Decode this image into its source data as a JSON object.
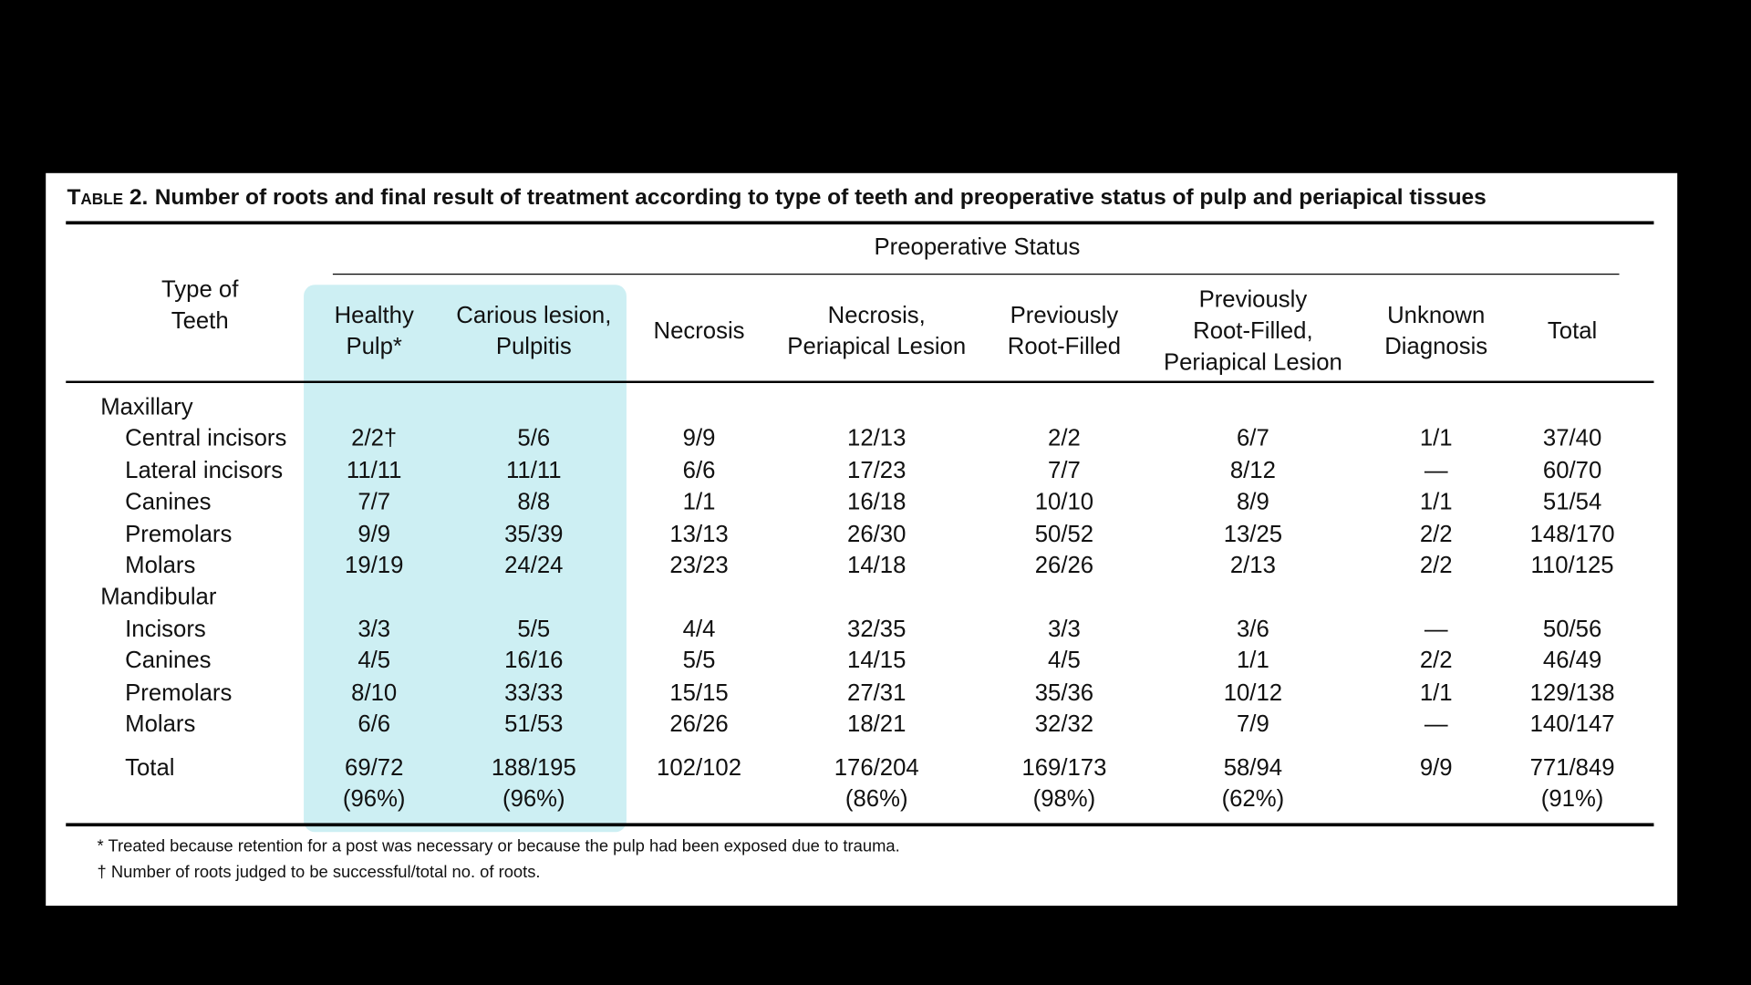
{
  "table": {
    "label": "Table 2.",
    "title": "Number of roots and final result of treatment according to type of teeth and preoperative status of pulp and periapical tissues",
    "row_header": "Type of\nTeeth",
    "group_header": "Preoperative Status",
    "columns": [
      "Healthy\nPulp*",
      "Carious lesion,\nPulpitis",
      "Necrosis",
      "Necrosis,\nPeriapical Lesion",
      "Previously\nRoot-Filled",
      "Previously\nRoot-Filled,\nPeriapical Lesion",
      "Unknown\nDiagnosis",
      "Total"
    ],
    "groups": [
      {
        "name": "Maxillary",
        "rows": [
          {
            "label": "Central incisors",
            "cells": [
              "2/2†",
              "5/6",
              "9/9",
              "12/13",
              "2/2",
              "6/7",
              "1/1",
              "37/40"
            ]
          },
          {
            "label": "Lateral incisors",
            "cells": [
              "11/11",
              "11/11",
              "6/6",
              "17/23",
              "7/7",
              "8/12",
              "—",
              "60/70"
            ]
          },
          {
            "label": "Canines",
            "cells": [
              "7/7",
              "8/8",
              "1/1",
              "16/18",
              "10/10",
              "8/9",
              "1/1",
              "51/54"
            ]
          },
          {
            "label": "Premolars",
            "cells": [
              "9/9",
              "35/39",
              "13/13",
              "26/30",
              "50/52",
              "13/25",
              "2/2",
              "148/170"
            ]
          },
          {
            "label": "Molars",
            "cells": [
              "19/19",
              "24/24",
              "23/23",
              "14/18",
              "26/26",
              "2/13",
              "2/2",
              "110/125"
            ]
          }
        ]
      },
      {
        "name": "Mandibular",
        "rows": [
          {
            "label": "Incisors",
            "cells": [
              "3/3",
              "5/5",
              "4/4",
              "32/35",
              "3/3",
              "3/6",
              "—",
              "50/56"
            ]
          },
          {
            "label": "Canines",
            "cells": [
              "4/5",
              "16/16",
              "5/5",
              "14/15",
              "4/5",
              "1/1",
              "2/2",
              "46/49"
            ]
          },
          {
            "label": "Premolars",
            "cells": [
              "8/10",
              "33/33",
              "15/15",
              "27/31",
              "35/36",
              "10/12",
              "1/1",
              "129/138"
            ]
          },
          {
            "label": "Molars",
            "cells": [
              "6/6",
              "51/53",
              "26/26",
              "18/21",
              "32/32",
              "7/9",
              "—",
              "140/147"
            ]
          }
        ]
      }
    ],
    "total": {
      "label": "Total",
      "cells": [
        "69/72",
        "188/195",
        "102/102",
        "176/204",
        "169/173",
        "58/94",
        "9/9",
        "771/849"
      ],
      "percents": [
        "(96%)",
        "(96%)",
        null,
        "(86%)",
        "(98%)",
        "(62%)",
        null,
        "(91%)"
      ]
    },
    "footnotes": [
      "* Treated because retention for a post was necessary or because the pulp had been exposed due to trauma.",
      "† Number of roots judged to be successful/total no. of roots."
    ]
  }
}
